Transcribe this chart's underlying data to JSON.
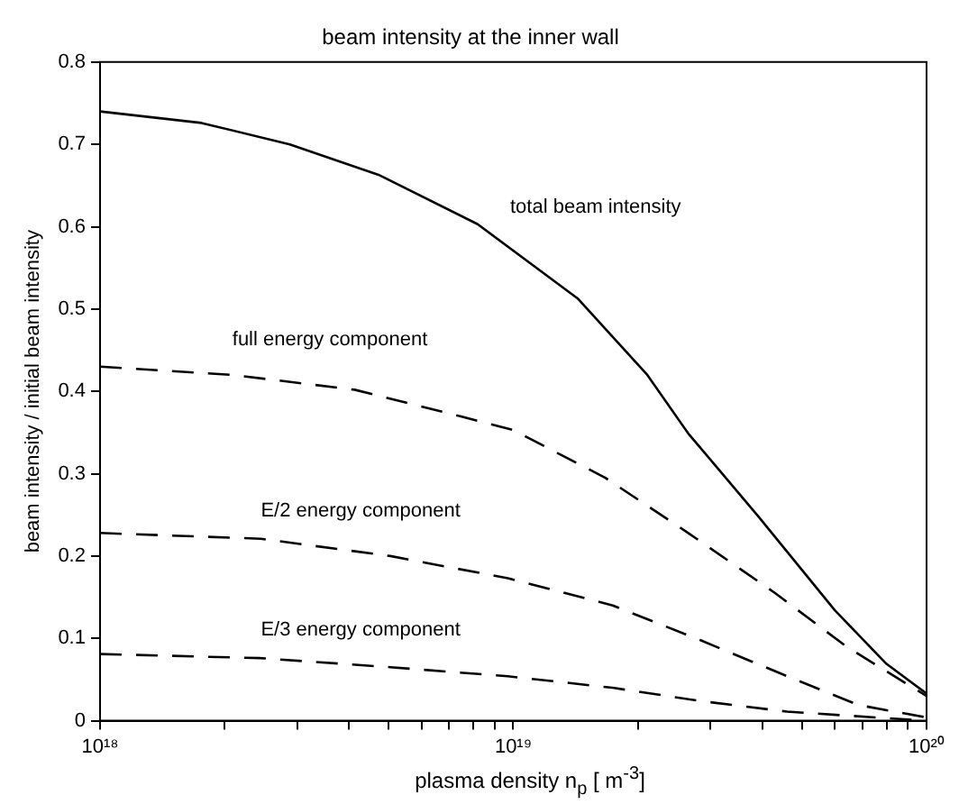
{
  "chart_data": {
    "type": "line",
    "title": "beam intensity at the inner wall",
    "xlabel": "plasma density n$_{p}$ [ m$^{-3}$]",
    "ylabel": "beam intensity / initial beam intensity",
    "log": "x",
    "xlim": [
      1e+18,
      1e+20
    ],
    "ylim": [
      0,
      0.8
    ],
    "xticks": [
      {
        "value": 1e+18,
        "label": "10¹⁸"
      },
      {
        "value": 2e+18,
        "label": null
      },
      {
        "value": 3e+18,
        "label": null
      },
      {
        "value": 4e+18,
        "label": null
      },
      {
        "value": 5e+18,
        "label": null
      },
      {
        "value": 6e+18,
        "label": null
      },
      {
        "value": 7e+18,
        "label": null
      },
      {
        "value": 8e+18,
        "label": null
      },
      {
        "value": 9e+18,
        "label": null
      },
      {
        "value": 1e+19,
        "label": "10¹⁹"
      },
      {
        "value": 2e+19,
        "label": null
      },
      {
        "value": 3e+19,
        "label": null
      },
      {
        "value": 4e+19,
        "label": null
      },
      {
        "value": 5e+19,
        "label": null
      },
      {
        "value": 6e+19,
        "label": null
      },
      {
        "value": 7e+19,
        "label": null
      },
      {
        "value": 8e+19,
        "label": null
      },
      {
        "value": 9e+19,
        "label": null
      },
      {
        "value": 1e+20,
        "label": "10²⁰"
      }
    ],
    "yticks": [
      0,
      0.1,
      0.2,
      0.3,
      0.4,
      0.5,
      0.6,
      0.7,
      0.8
    ],
    "grid": false,
    "legend": false,
    "marker": "none",
    "series": [
      {
        "name": "total beam intensity",
        "color": "#000000",
        "line_style": "solid",
        "x": [
          1e+18,
          1.76e+18,
          2.88e+18,
          4.72e+18,
          8.2e+18,
          1.43e+19,
          2.11e+19,
          2.65e+19,
          3.92e+19,
          6e+19,
          8e+19,
          1e+20
        ],
        "values": [
          0.74,
          0.726,
          0.7,
          0.663,
          0.603,
          0.513,
          0.42,
          0.349,
          0.248,
          0.134,
          0.069,
          0.033
        ]
      },
      {
        "name": "full energy component",
        "color": "#000000",
        "line_style": "dashed",
        "x": [
          1e+18,
          2.09e+18,
          4.13e+18,
          7.4e+18,
          1e+19,
          1.67e+19,
          2.65e+19,
          4.3e+19,
          6.4e+19,
          1e+20
        ],
        "values": [
          0.43,
          0.42,
          0.402,
          0.37,
          0.353,
          0.295,
          0.228,
          0.155,
          0.09,
          0.03
        ]
      },
      {
        "name": "E/2 energy component",
        "color": "#000000",
        "line_style": "dashed",
        "x": [
          1e+18,
          2.45e+18,
          5.04e+18,
          9.7e+18,
          1.74e+19,
          2.83e+19,
          4.6e+19,
          6.85e+19,
          1e+20
        ],
        "values": [
          0.228,
          0.221,
          0.2,
          0.173,
          0.14,
          0.098,
          0.054,
          0.019,
          0.004
        ]
      },
      {
        "name": "E/3 energy component",
        "color": "#000000",
        "line_style": "dashed",
        "x": [
          1e+18,
          2.45e+18,
          5.04e+18,
          9.7e+18,
          1.74e+19,
          2.83e+19,
          4.6e+19,
          1e+20
        ],
        "values": [
          0.081,
          0.076,
          0.065,
          0.054,
          0.04,
          0.024,
          0.011,
          0
        ]
      }
    ]
  }
}
